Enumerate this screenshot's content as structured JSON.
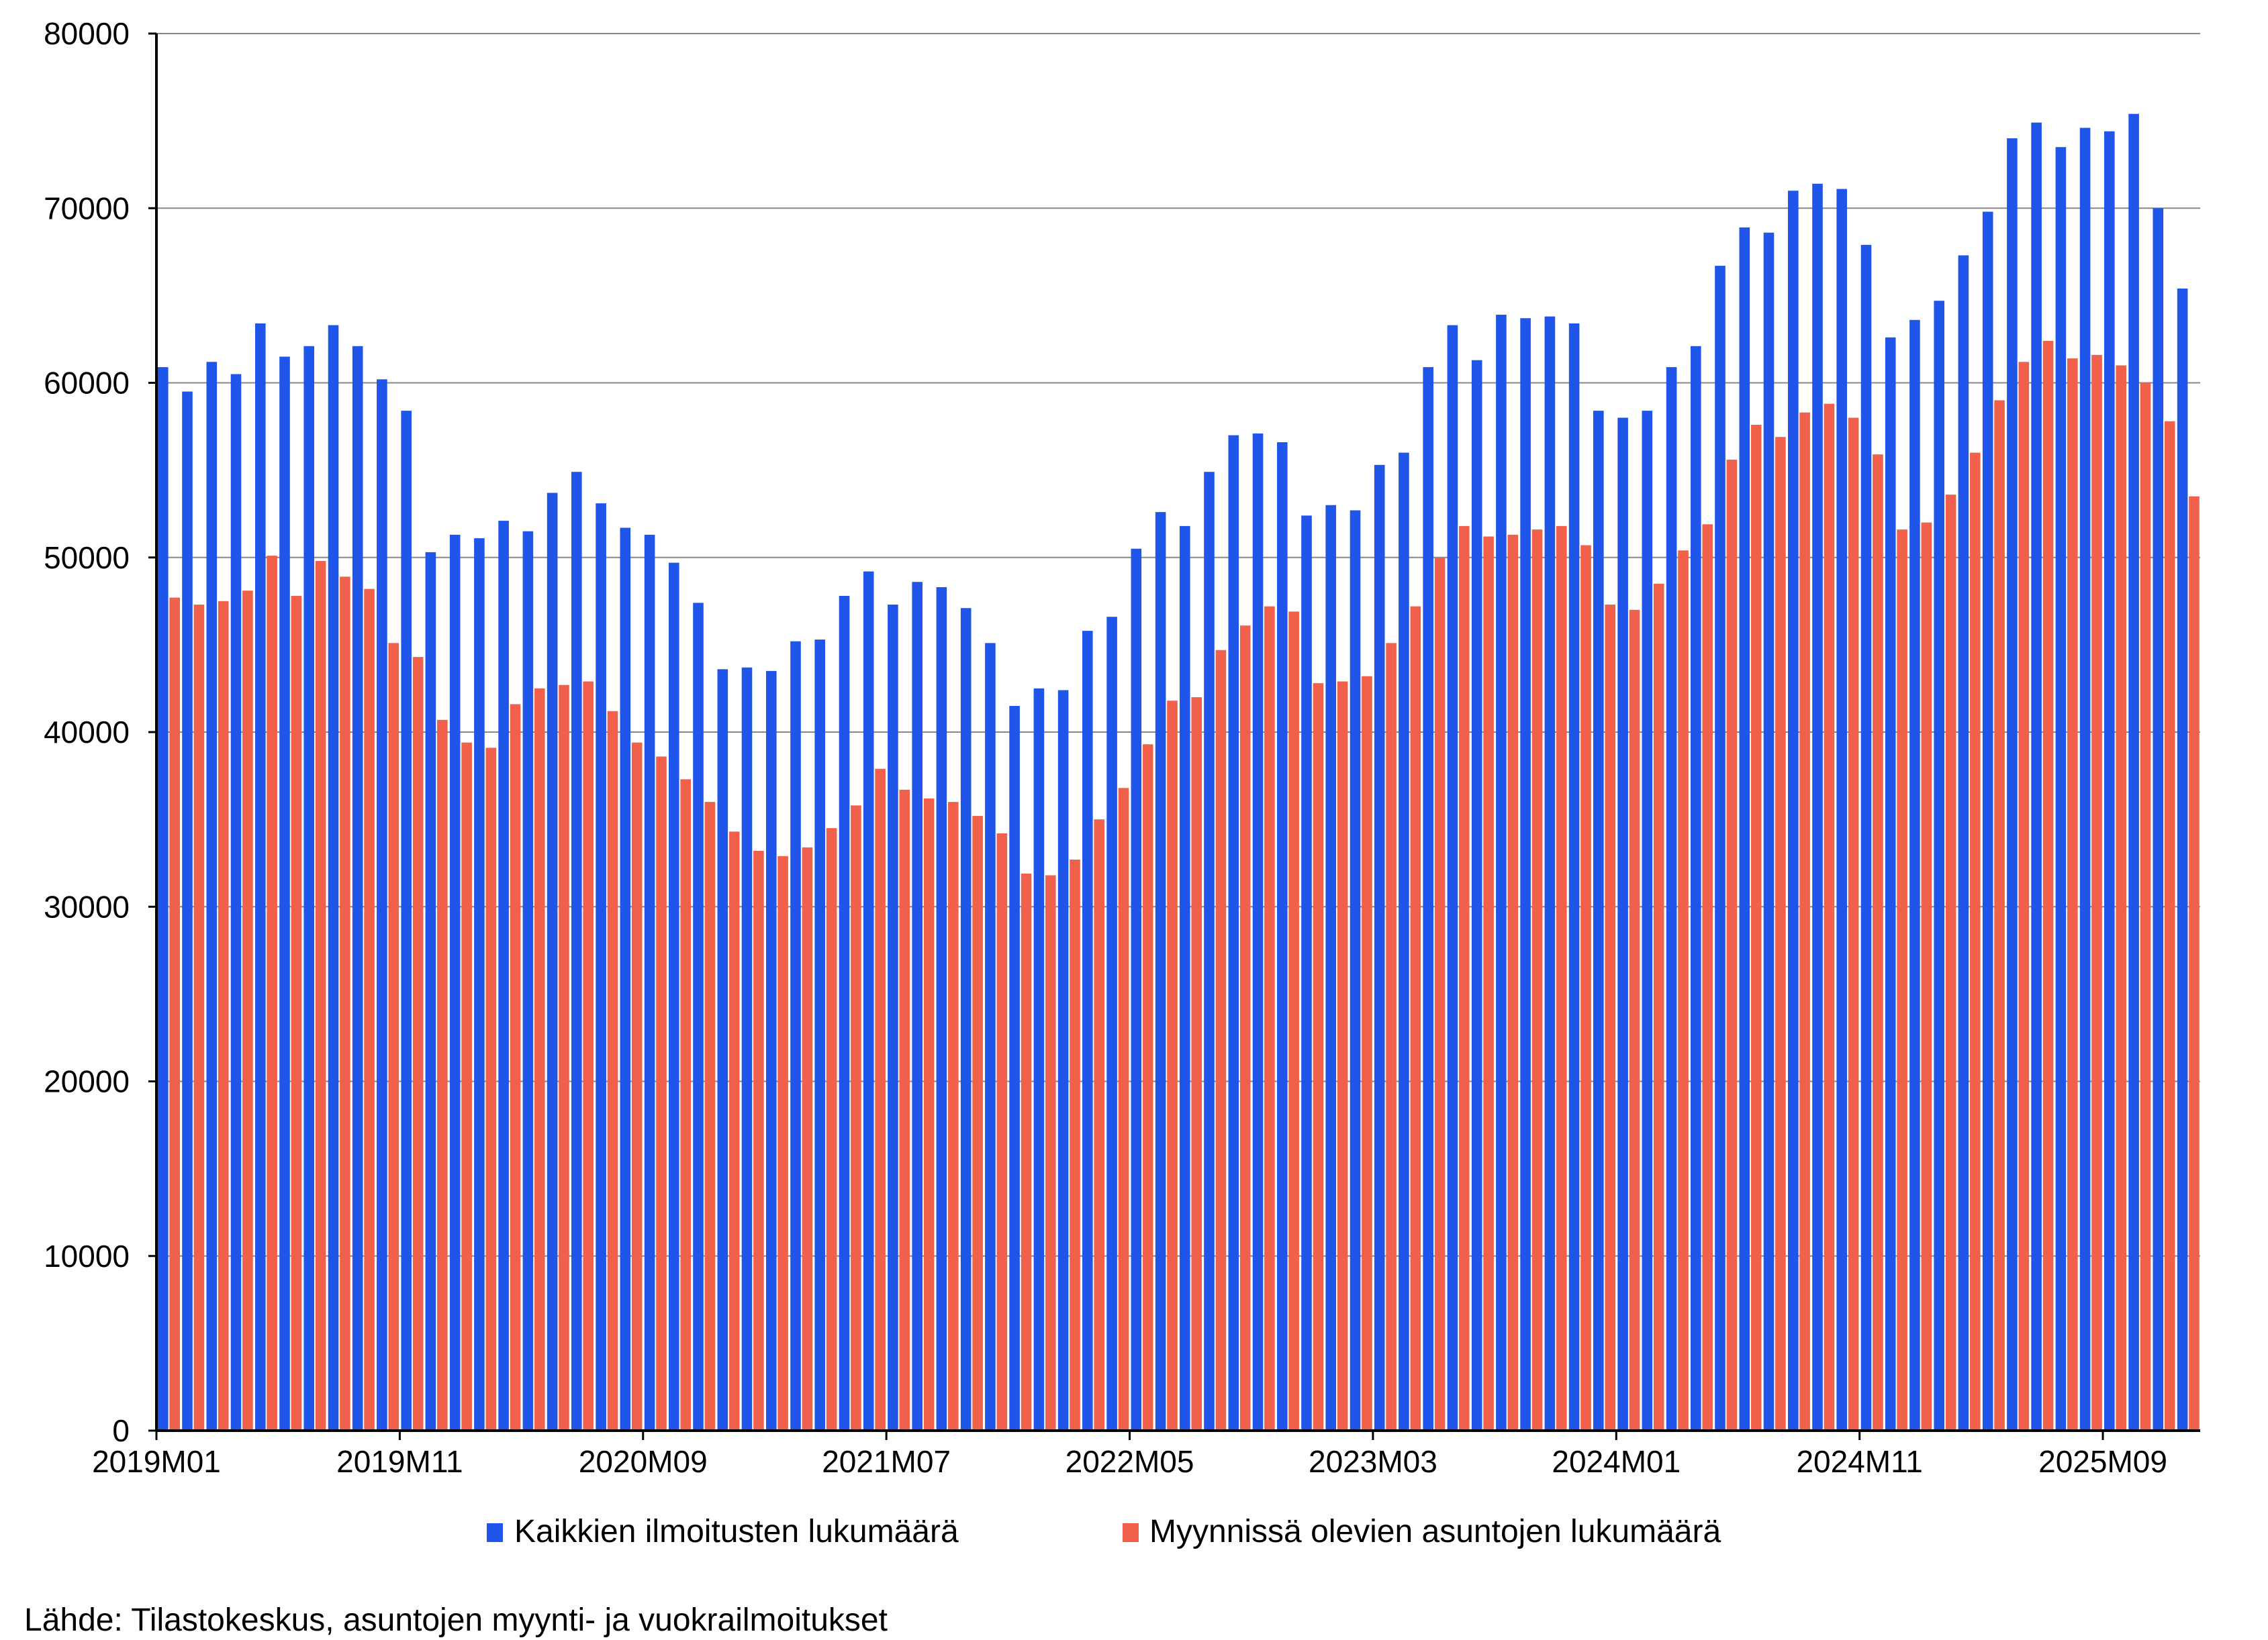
{
  "chart_data": {
    "type": "bar",
    "title": "",
    "xlabel": "",
    "ylabel": "",
    "ylim": [
      0,
      80000
    ],
    "yticks": [
      "0",
      "10000",
      "20000",
      "30000",
      "40000",
      "50000",
      "60000",
      "70000",
      "80000"
    ],
    "xtick_labels": [
      "2019M01",
      "2019M11",
      "2020M09",
      "2021M07",
      "2022M05",
      "2023M03",
      "2024M01",
      "2024M11",
      "2025M09"
    ],
    "grid": "horizontal",
    "legend_position": "bottom",
    "start_month": "2019M01",
    "series": [
      {
        "name": "Kaikkien ilmoitusten lukumäärä",
        "color": "#1f55e8",
        "values": [
          60900,
          59500,
          61200,
          60500,
          63400,
          61500,
          62100,
          63300,
          62100,
          60200,
          58400,
          50300,
          51300,
          51100,
          52100,
          51500,
          53700,
          54900,
          53100,
          51700,
          51300,
          49700,
          47400,
          43600,
          43700,
          43500,
          45200,
          45300,
          47800,
          49200,
          47300,
          48600,
          48300,
          47100,
          45100,
          41500,
          42500,
          42400,
          45800,
          46600,
          50500,
          52600,
          51800,
          54900,
          57000,
          57100,
          56600,
          52400,
          53000,
          52700,
          55300,
          56000,
          60900,
          63300,
          61300,
          63900,
          63700,
          63800,
          63400,
          58400,
          58000,
          58400,
          60900,
          62100,
          66700,
          68900,
          68600,
          71000,
          71400,
          71100,
          67900,
          62600,
          63600,
          64700,
          67300,
          69800,
          74000,
          74900,
          73500,
          74600,
          74400,
          75400,
          70000,
          65400
        ]
      },
      {
        "name": "Myynnissä olevien asuntojen lukumäärä",
        "color": "#f0604a",
        "values": [
          47700,
          47300,
          47500,
          48100,
          50100,
          47800,
          49800,
          48900,
          48200,
          45100,
          44300,
          40700,
          39400,
          39100,
          41600,
          42500,
          42700,
          42900,
          41200,
          39400,
          38600,
          37300,
          36000,
          34300,
          33200,
          32900,
          33400,
          34500,
          35800,
          37900,
          36700,
          36200,
          36000,
          35200,
          34200,
          31900,
          31800,
          32700,
          35000,
          36800,
          39300,
          41800,
          42000,
          44700,
          46100,
          47200,
          46900,
          42800,
          42900,
          43200,
          45100,
          47200,
          50000,
          51800,
          51200,
          51300,
          51600,
          51800,
          50700,
          47300,
          47000,
          48500,
          50400,
          51900,
          55600,
          57600,
          56900,
          58300,
          58800,
          58000,
          55900,
          51600,
          52000,
          53600,
          56000,
          59000,
          61200,
          62400,
          61400,
          61600,
          61000,
          60000,
          57800,
          53500
        ]
      }
    ]
  },
  "source": "Lähde: Tilastokeskus, asuntojen myynti- ja vuokrailmoitukset"
}
